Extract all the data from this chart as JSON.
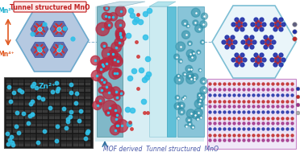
{
  "title": "MOF derived  Tunnel structured  MnO",
  "top_left_label": "Tunnel structured MnO",
  "mn2_label": "Mn²⁺",
  "mn4_label": "Mn⁴⁺",
  "zn2_label": "Zn²⁺",
  "bg_color": "#ffffff",
  "hex_top_fill": "#a8c0dc",
  "hex_top_edge": "#5aa0c8",
  "hex_right_fill": "#e8f4fa",
  "hex_right_edge": "#70b8d0",
  "mn_arrow_color": "#e05820",
  "cyan_ion": "#30c0e8",
  "red_cluster": "#b82840",
  "dark_bg": "#181818",
  "stripe_dark": "#282828",
  "stripe_light": "#383838",
  "cathode_face": "#b0d8e4",
  "cathode_edge": "#70b0c0",
  "sep_face": "#c8eaf0",
  "sep_line": "#80c0d0",
  "anode_face": "#90c8dc",
  "anode_edge": "#50a0b8",
  "electrolyte_bg": "#d8eef4",
  "teal_mol": "#3090a8",
  "blue_crystal": "#2030a8",
  "red_crystal": "#c02828",
  "white_crystal": "#e0e8f0",
  "pink_bg": "#f0e8f8",
  "pink_edge": "#c888c8",
  "label_box_face": "#fce8e8",
  "label_box_edge": "#c83030",
  "title_fontsize": 7,
  "label_fontsize": 5.5,
  "tiny_fontsize": 4.5
}
